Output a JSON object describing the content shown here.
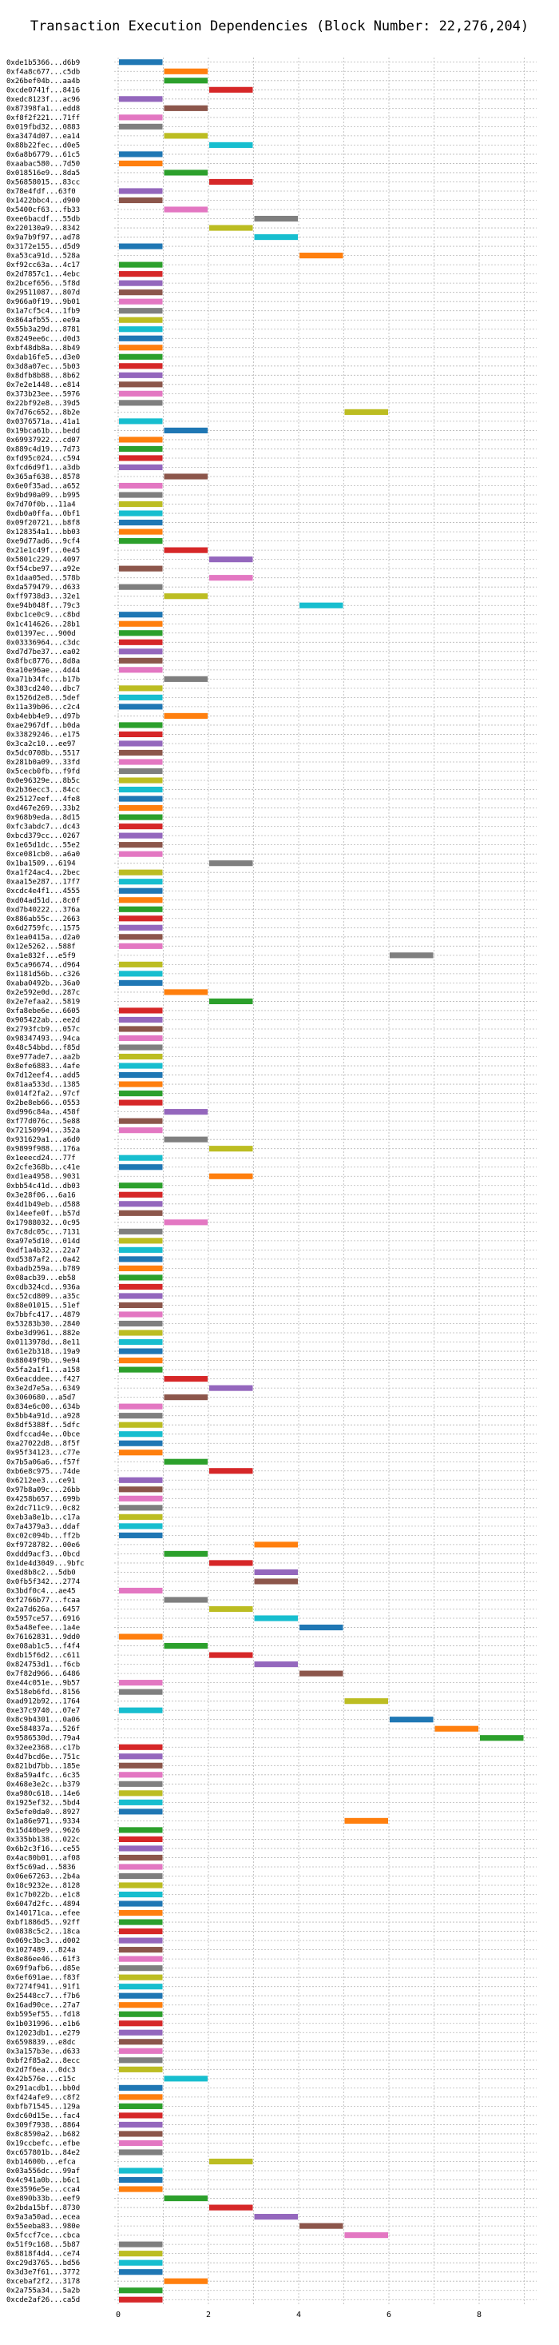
{
  "chart_data": {
    "type": "bar",
    "orientation": "horizontal",
    "title": "Transaction Execution Dependencies (Block Number: 22,276,204)",
    "xlabel": "",
    "ylabel": "",
    "xlim": [
      0,
      9.5
    ],
    "x_ticks": [
      "0",
      "2",
      "4",
      "6",
      "8"
    ],
    "x_tick_values": [
      0,
      2,
      4,
      6,
      8
    ],
    "grid": true,
    "palette": [
      "#1f77b4",
      "#ff7f0e",
      "#2ca02c",
      "#d62728",
      "#9467bd",
      "#8c564b",
      "#e377c2",
      "#7f7f7f",
      "#bcbd22",
      "#17becf"
    ],
    "transactions": [
      "0xde1b5366...d6b9",
      "0xf4a8c677...c5db",
      "0x26bef04b...aa4b",
      "0xcde0741f...8416",
      "0xedc8123f...ac96",
      "0x87398fa1...edd8",
      "0xf8f2f221...71ff",
      "0x019fbd32...0883",
      "0xa3474d07...ea14",
      "0x88b22fec...d0e5",
      "0x6a8b6779...61c5",
      "0xaabac580...7d50",
      "0x018516e9...8da5",
      "0x56858015...83cc",
      "0x78e4fdf...63f0",
      "0x1422bbc4...d900",
      "0x5400cf63...fb33",
      "0xee6bacdf...55db",
      "0x220130a9...8342",
      "0x9a7b9f97...ad78",
      "0x3172e155...d5d9",
      "0xa53ca91d...528a",
      "0xf92cc63a...4c17",
      "0x2d7857c1...4ebc",
      "0x2bcef656...5f8d",
      "0x29511087...807d",
      "0x966a0f19...9b01",
      "0x1a7cf5c4...1fb9",
      "0x864afb55...ee9a",
      "0x55b3a29d...8781",
      "0x8249ee6c...d0d3",
      "0xbf48db8a...8b49",
      "0xdab16fe5...d3e0",
      "0x3d8a07ec...5b03",
      "0x8dfb8b88...8b62",
      "0x7e2e1448...e814",
      "0x373b23ee...5976",
      "0x22bf92e8...39d5",
      "0x7d76c652...8b2e",
      "0x0376571a...41a1",
      "0x19bca61b...bedd",
      "0x69937922...cd07",
      "0x889c4d19...7d73",
      "0xfd95c024...c594",
      "0xfcd6d9f1...a3db",
      "0x365af638...8578",
      "0x6e0f35ad...a652",
      "0x9bd90a09...b995",
      "0x7d70f0b...11a4",
      "0xdb0a0ffa...0bf1",
      "0x09f20721...b8f8",
      "0x128354a1...bb03",
      "0xe9d77ad6...9cf4",
      "0x21e1c49f...0e45",
      "0x5801c229...4097",
      "0xf54cbe97...a92e",
      "0x1daa05ed...578b",
      "0xda579479...d633",
      "0xff9738d3...32e1",
      "0xe94b048f...79c3",
      "0xbc1ce0c9...c8bd",
      "0x1c414626...28b1",
      "0x01397ec...900d",
      "0x03336964...c3dc",
      "0xd7d7be37...ea02",
      "0x8fbc8776...8d8a",
      "0xa10e96ae...4d44",
      "0xa71b34fc...b17b",
      "0x383cd240...dbc7",
      "0x1526d2e8...5def",
      "0x11a39b06...c2c4",
      "0xb4ebb4e9...d97b",
      "0xae2967df...b0da",
      "0x33829246...e175",
      "0x3ca2c10...ee97",
      "0x5dc0708b...5517",
      "0x281b0a09...33fd",
      "0x5cecb0fb...f9fd",
      "0x0e96329e...8b5c",
      "0x2b36ecc3...84cc",
      "0x25127eef...4fe8",
      "0xd467e269...33b2",
      "0x968b9eda...8d15",
      "0xfc3abdc7...dc43",
      "0xbcd379cc...0267",
      "0x1e65d1dc...55e2",
      "0xce081cb0...a6a0",
      "0x1ba1509...6194",
      "0xa1f24ac4...2bec",
      "0xaa15e287...17f7",
      "0xcdc4e4f1...4555",
      "0xd04ad51d...8c0f",
      "0xd7b40222...376a",
      "0x886ab55c...2663",
      "0x6d2759fc...1575",
      "0x1ea0415a...d2a0",
      "0x12e5262...588f",
      "0xa1e832f...e5f9",
      "0x5ca96674...d964",
      "0x1181d56b...c326",
      "0xaba0492b...36a0",
      "0x2e592e0d...287c",
      "0x2e7efaa2...5819",
      "0xfa8ebe6e...6605",
      "0x905422ab...ee2d",
      "0x2793fcb9...057c",
      "0x98347493...94ca",
      "0x48c54bbd...f85d",
      "0xe977ade7...aa2b",
      "0x8efe6883...4afe",
      "0x7d12eef4...add5",
      "0x81aa533d...1385",
      "0x014f2fa2...97cf",
      "0x2be8eb66...0553",
      "0xd996c84a...458f",
      "0xf77d076c...5e88",
      "0x72150994...352a",
      "0x931629a1...a6d0",
      "0x9899f988...176a",
      "0x1eeecd24...77f",
      "0x2cfe368b...c41e",
      "0xd1ea4958...9031",
      "0xbb54c41d...db03",
      "0x3e28f06...6a16",
      "0x4d1b49eb...d588",
      "0x14eefe0f...b57d",
      "0x17988032...0c95",
      "0x7c8dc05c...7131",
      "0xa97e5d10...014d",
      "0xdf1a4b32...22a7",
      "0xd5387af2...0a42",
      "0xbadb259a...b789",
      "0x08acb39...eb58",
      "0xcdb324cd...936a",
      "0xc52cd809...a35c",
      "0x88e01015...51ef",
      "0x7bbfc417...4879",
      "0x53283b30...2840",
      "0xbe3d9961...882e",
      "0x0113978d...8e11",
      "0x61e2b318...19a9",
      "0x88049f9b...9e94",
      "0x5fa2a1f1...a158",
      "0x6eacddee...f427",
      "0x3e2d7e5a...6349",
      "0x3060680...a5d7",
      "0x834e6c00...634b",
      "0x5bb4a91d...a928",
      "0x8df5388f...5dfc",
      "0xdfccad4e...0bce",
      "0xa27022d8...8f5f",
      "0x95f34123...c77e",
      "0x7b5a06a6...f57f",
      "0xb6e8c975...74de",
      "0x6212ee3...ce91",
      "0x97b8a09c...26bb",
      "0x4258b657...699b",
      "0x2dc711c9...0c82",
      "0xeb3a8e1b...c17a",
      "0x7a4379a3...ddaf",
      "0xc02c094b...ff2b",
      "0xf9728782...00e6",
      "0xddd9acf3...0bcd",
      "0x1de4d3049...9bfc",
      "0xed8b8c2...5db0",
      "0x0fb5f342...2774",
      "0x3bdf0c4...ae45",
      "0xf2766b77...fcaa",
      "0x2a7d626a...6457",
      "0x5957ce57...6916",
      "0x5a48efee...1a4e",
      "0x76162831...9dd0",
      "0xe08ab1c5...f4f4",
      "0xdb15f6d2...c611",
      "0x824753d1...f6cb",
      "0x7f82d966...6486",
      "0xe44c051e...9b57",
      "0x518eb6fd...8156",
      "0xad912b92...1764",
      "0xe37c9740...07e7",
      "0x8c9b4301...0a06",
      "0xe584837a...526f",
      "0x9586530d...79a4",
      "0x32ee2368...c17b",
      "0x4d7bcd6e...751c",
      "0x821bd7bb...185e",
      "0x8a59a4fc...6c35",
      "0x468e3e2c...b379",
      "0xa980c618...14e6",
      "0x1925ef32...5bd4",
      "0x5efe0da0...8927",
      "0x1a86e971...9334",
      "0x15d40be9...9626",
      "0x335bb138...022c",
      "0x6b2c3f16...ce55",
      "0x4ac80b01...af08",
      "0xf5c69ad...5836",
      "0x06e67263...2b4a",
      "0x18c9232e...8128",
      "0x1c7b022b...e1c8",
      "0x6047d2fc...4894",
      "0x140171ca...efee",
      "0xbf1886d5...92ff",
      "0x0838c5c2...18ca",
      "0x069c3bc3...d002",
      "0x1027489...824a",
      "0x8e86ee46...61f3",
      "0x69f9afb6...d85e",
      "0x6ef691ae...f83f",
      "0x7274f941...91f1",
      "0x25448cc7...f7b6",
      "0x16ad90ce...27a7",
      "0xb595ef55...fd18",
      "0x1b031996...e1b6",
      "0x12023db1...e279",
      "0x6598839...e8dc",
      "0x3a157b3e...d633",
      "0xbf2f85a2...8ecc",
      "0x2d7f6ea...0dc3",
      "0x42b576e...c15c",
      "0x291acdb1...bb0d",
      "0xf424afe9...c8f2",
      "0xbfb71545...129a",
      "0xdc60d15e...fac4",
      "0x309f7938...8864",
      "0x8c8590a2...b682",
      "0x19ccbefc...efbe",
      "0xc657801b...84e2",
      "0xb14600b...efca",
      "0x03a556dc...99af",
      "0x4c941a0b...b6c1",
      "0xe3596e5e...cca4",
      "0xe890b33b...eef9",
      "0x2bda15bf...8730",
      "0x9a3a50ad...ecea",
      "0x55eeba83...980e",
      "0x5fccf7ce...cbca",
      "0x51f9c168...5b87",
      "0x8818f4d4...ce74",
      "0xc29d3765...bd56",
      "0x3d3e7f61...3772",
      "0xcebaf2f2...3178",
      "0x2a755a34...5a2b",
      "0xcde2af26...ca5d"
    ],
    "bars": [
      [
        0,
        1
      ],
      [
        1,
        2
      ],
      [
        1,
        2
      ],
      [
        2,
        3
      ],
      [
        0,
        1
      ],
      [
        1,
        2
      ],
      [
        0,
        1
      ],
      [
        0,
        1
      ],
      [
        1,
        2
      ],
      [
        2,
        3
      ],
      [
        0,
        1
      ],
      [
        0,
        1
      ],
      [
        1,
        2
      ],
      [
        2,
        3
      ],
      [
        0,
        1
      ],
      [
        0,
        1
      ],
      [
        1,
        2
      ],
      [
        3,
        4
      ],
      [
        2,
        3
      ],
      [
        3,
        4
      ],
      [
        0,
        1
      ],
      [
        4,
        5
      ],
      [
        0,
        1
      ],
      [
        0,
        1
      ],
      [
        0,
        1
      ],
      [
        0,
        1
      ],
      [
        0,
        1
      ],
      [
        0,
        1
      ],
      [
        0,
        1
      ],
      [
        0,
        1
      ],
      [
        0,
        1
      ],
      [
        0,
        1
      ],
      [
        0,
        1
      ],
      [
        0,
        1
      ],
      [
        0,
        1
      ],
      [
        0,
        1
      ],
      [
        0,
        1
      ],
      [
        0,
        1
      ],
      [
        5,
        6
      ],
      [
        0,
        1
      ],
      [
        1,
        2
      ],
      [
        0,
        1
      ],
      [
        0,
        1
      ],
      [
        0,
        1
      ],
      [
        0,
        1
      ],
      [
        1,
        2
      ],
      [
        0,
        1
      ],
      [
        0,
        1
      ],
      [
        0,
        1
      ],
      [
        0,
        1
      ],
      [
        0,
        1
      ],
      [
        0,
        1
      ],
      [
        0,
        1
      ],
      [
        1,
        2
      ],
      [
        2,
        3
      ],
      [
        0,
        1
      ],
      [
        2,
        3
      ],
      [
        0,
        1
      ],
      [
        1,
        2
      ],
      [
        4,
        5
      ],
      [
        0,
        1
      ],
      [
        0,
        1
      ],
      [
        0,
        1
      ],
      [
        0,
        1
      ],
      [
        0,
        1
      ],
      [
        0,
        1
      ],
      [
        0,
        1
      ],
      [
        1,
        2
      ],
      [
        0,
        1
      ],
      [
        0,
        1
      ],
      [
        0,
        1
      ],
      [
        1,
        2
      ],
      [
        0,
        1
      ],
      [
        0,
        1
      ],
      [
        0,
        1
      ],
      [
        0,
        1
      ],
      [
        0,
        1
      ],
      [
        0,
        1
      ],
      [
        0,
        1
      ],
      [
        0,
        1
      ],
      [
        0,
        1
      ],
      [
        0,
        1
      ],
      [
        0,
        1
      ],
      [
        0,
        1
      ],
      [
        0,
        1
      ],
      [
        0,
        1
      ],
      [
        0,
        1
      ],
      [
        2,
        3
      ],
      [
        0,
        1
      ],
      [
        0,
        1
      ],
      [
        0,
        1
      ],
      [
        0,
        1
      ],
      [
        0,
        1
      ],
      [
        0,
        1
      ],
      [
        0,
        1
      ],
      [
        0,
        1
      ],
      [
        0,
        1
      ],
      [
        6,
        7
      ],
      [
        0,
        1
      ],
      [
        0,
        1
      ],
      [
        0,
        1
      ],
      [
        1,
        2
      ],
      [
        2,
        3
      ],
      [
        0,
        1
      ],
      [
        0,
        1
      ],
      [
        0,
        1
      ],
      [
        0,
        1
      ],
      [
        0,
        1
      ],
      [
        0,
        1
      ],
      [
        0,
        1
      ],
      [
        0,
        1
      ],
      [
        0,
        1
      ],
      [
        0,
        1
      ],
      [
        0,
        1
      ],
      [
        1,
        2
      ],
      [
        0,
        1
      ],
      [
        0,
        1
      ],
      [
        1,
        2
      ],
      [
        2,
        3
      ],
      [
        0,
        1
      ],
      [
        0,
        1
      ],
      [
        2,
        3
      ],
      [
        0,
        1
      ],
      [
        0,
        1
      ],
      [
        0,
        1
      ],
      [
        0,
        1
      ],
      [
        1,
        2
      ],
      [
        0,
        1
      ],
      [
        0,
        1
      ],
      [
        0,
        1
      ],
      [
        0,
        1
      ],
      [
        0,
        1
      ],
      [
        0,
        1
      ],
      [
        0,
        1
      ],
      [
        0,
        1
      ],
      [
        0,
        1
      ],
      [
        0,
        1
      ],
      [
        0,
        1
      ],
      [
        0,
        1
      ],
      [
        0,
        1
      ],
      [
        0,
        1
      ],
      [
        0,
        1
      ],
      [
        0,
        1
      ],
      [
        1,
        2
      ],
      [
        2,
        3
      ],
      [
        1,
        2
      ],
      [
        0,
        1
      ],
      [
        0,
        1
      ],
      [
        0,
        1
      ],
      [
        0,
        1
      ],
      [
        0,
        1
      ],
      [
        0,
        1
      ],
      [
        1,
        2
      ],
      [
        2,
        3
      ],
      [
        0,
        1
      ],
      [
        0,
        1
      ],
      [
        0,
        1
      ],
      [
        0,
        1
      ],
      [
        0,
        1
      ],
      [
        0,
        1
      ],
      [
        0,
        1
      ],
      [
        3,
        4
      ],
      [
        1,
        2
      ],
      [
        2,
        3
      ],
      [
        3,
        4
      ],
      [
        3,
        4
      ],
      [
        0,
        1
      ],
      [
        1,
        2
      ],
      [
        2,
        3
      ],
      [
        3,
        4
      ],
      [
        4,
        5
      ],
      [
        0,
        1
      ],
      [
        1,
        2
      ],
      [
        2,
        3
      ],
      [
        3,
        4
      ],
      [
        4,
        5
      ],
      [
        0,
        1
      ],
      [
        0,
        1
      ],
      [
        5,
        6
      ],
      [
        0,
        1
      ],
      [
        6,
        7
      ],
      [
        7,
        8
      ],
      [
        8,
        9
      ],
      [
        0,
        1
      ],
      [
        0,
        1
      ],
      [
        0,
        1
      ],
      [
        0,
        1
      ],
      [
        0,
        1
      ],
      [
        0,
        1
      ],
      [
        0,
        1
      ],
      [
        0,
        1
      ],
      [
        5,
        6
      ],
      [
        0,
        1
      ],
      [
        0,
        1
      ],
      [
        0,
        1
      ],
      [
        0,
        1
      ],
      [
        0,
        1
      ],
      [
        0,
        1
      ],
      [
        0,
        1
      ],
      [
        0,
        1
      ],
      [
        0,
        1
      ],
      [
        0,
        1
      ],
      [
        0,
        1
      ],
      [
        0,
        1
      ],
      [
        0,
        1
      ],
      [
        0,
        1
      ],
      [
        0,
        1
      ],
      [
        0,
        1
      ],
      [
        0,
        1
      ],
      [
        0,
        1
      ],
      [
        0,
        1
      ],
      [
        0,
        1
      ],
      [
        0,
        1
      ],
      [
        0,
        1
      ],
      [
        0,
        1
      ],
      [
        0,
        1
      ],
      [
        0,
        1
      ],
      [
        0,
        1
      ],
      [
        0,
        1
      ],
      [
        1,
        2
      ],
      [
        0,
        1
      ],
      [
        0,
        1
      ],
      [
        0,
        1
      ],
      [
        0,
        1
      ],
      [
        0,
        1
      ],
      [
        0,
        1
      ],
      [
        0,
        1
      ],
      [
        0,
        1
      ],
      [
        2,
        3
      ],
      [
        0,
        1
      ],
      [
        0,
        1
      ],
      [
        0,
        1
      ],
      [
        1,
        2
      ],
      [
        2,
        3
      ],
      [
        3,
        4
      ],
      [
        4,
        5
      ],
      [
        5,
        6
      ],
      [
        0,
        1
      ],
      [
        0,
        1
      ],
      [
        0,
        1
      ],
      [
        0,
        1
      ],
      [
        1,
        2
      ],
      [
        0,
        1
      ],
      [
        0,
        1
      ],
      [
        0,
        1
      ],
      [
        0,
        1
      ]
    ]
  }
}
